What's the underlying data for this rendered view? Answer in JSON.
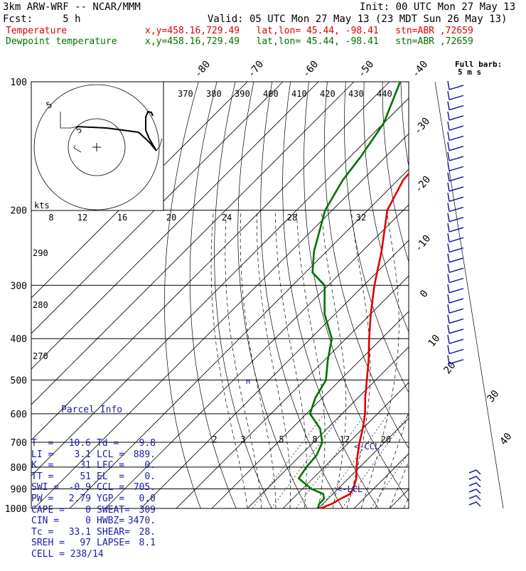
{
  "header": {
    "model": "3km ARW-WRF -- NCAR/MMM",
    "init": "Init: 00 UTC Mon 27 May 13",
    "fcst": "Fcst:     5 h",
    "valid": "Valid: 05 UTC Mon 27 May 13 (23 MDT Sun 26 May 13)",
    "temperature": {
      "name": "Temperature",
      "info": "x,y=458.16,729.49   lat,lon= 45.44, -98.41   stn=ABR ,72659",
      "color": "#e00000"
    },
    "dewpoint": {
      "name": "Dewpoint temperature",
      "info": "x,y=458.16,729.49   lat,lon= 45.44, -98.41   stn=ABR ,72659",
      "color": "#007000"
    }
  },
  "chart_data": {
    "type": "line",
    "title": "",
    "yscale": "log",
    "ylim": [
      1000,
      100
    ],
    "pressure_labels": [
      "100",
      "200",
      "300",
      "400",
      "500",
      "600",
      "700",
      "800",
      "900",
      "1000"
    ],
    "isotherm_labels": [
      "-80",
      "-70",
      "-60",
      "-50",
      "-40",
      "-30",
      "-20",
      "-10",
      "0",
      "10",
      "20",
      "30",
      "40"
    ],
    "theta_labels": [
      "370",
      "380",
      "390",
      "400",
      "410",
      "420",
      "430",
      "440"
    ],
    "mixing_ratio_labels": [
      "2",
      "3",
      "5",
      "8",
      "12",
      "20"
    ],
    "dry_adiabat_labels": [
      "290",
      "280",
      "270"
    ],
    "series": [
      {
        "name": "Temperature",
        "color": "#e00000",
        "points": [
          [
            1000,
            10.6
          ],
          [
            975,
            12.5
          ],
          [
            950,
            13.5
          ],
          [
            925,
            14.8
          ],
          [
            900,
            14.3
          ],
          [
            850,
            12.2
          ],
          [
            800,
            9.1
          ],
          [
            750,
            6.0
          ],
          [
            700,
            3.0
          ],
          [
            650,
            0.0
          ],
          [
            600,
            -3.5
          ],
          [
            550,
            -8.0
          ],
          [
            500,
            -12.5
          ],
          [
            450,
            -17.5
          ],
          [
            400,
            -23.5
          ],
          [
            350,
            -30.0
          ],
          [
            300,
            -37.0
          ],
          [
            250,
            -44.5
          ],
          [
            200,
            -54.5
          ],
          [
            170,
            -58.5
          ],
          [
            150,
            -59.5
          ],
          [
            125,
            -61.0
          ],
          [
            100,
            -66.0
          ]
        ]
      },
      {
        "name": "Dewpoint temperature",
        "color": "#007000",
        "points": [
          [
            1000,
            9.8
          ],
          [
            975,
            8.9
          ],
          [
            950,
            8.9
          ],
          [
            925,
            7.3
          ],
          [
            900,
            2.5
          ],
          [
            850,
            -4.0
          ],
          [
            800,
            -5.0
          ],
          [
            750,
            -5.5
          ],
          [
            700,
            -7.5
          ],
          [
            650,
            -12.0
          ],
          [
            600,
            -19.0
          ],
          [
            550,
            -22.0
          ],
          [
            500,
            -24.0
          ],
          [
            450,
            -29.0
          ],
          [
            400,
            -34.0
          ],
          [
            350,
            -43.0
          ],
          [
            300,
            -51.0
          ],
          [
            280,
            -58.0
          ],
          [
            250,
            -63.5
          ],
          [
            200,
            -72.0
          ],
          [
            170,
            -75.5
          ],
          [
            150,
            -77.0
          ],
          [
            125,
            -80.0
          ],
          [
            100,
            -87.0
          ]
        ]
      }
    ],
    "annotations": {
      "ccl": "<-CCL",
      "lcl": "<-LCL",
      "lfc": "H"
    },
    "hodograph": {
      "units": "kts",
      "ring_labels": [
        "5"
      ],
      "speed_labels": [
        "8",
        "12",
        "16",
        "20",
        "24",
        "28",
        "32"
      ]
    },
    "wind_barbs": {
      "legend": "Full barb:",
      "legend_value": "5 m s",
      "count": 28
    }
  },
  "parcel": {
    "title": "Parcel Info",
    "rows": [
      [
        "T  =",
        "10.6",
        "Td =",
        "9.8"
      ],
      [
        "LI =",
        "3.1",
        "LCL =",
        "889."
      ],
      [
        "K  =",
        "31",
        "LFC =",
        "0."
      ],
      [
        "TT =",
        "51",
        "EL  =",
        "0."
      ],
      [
        "SWI =",
        "-0.9",
        "CCL =",
        "705."
      ],
      [
        "PW =",
        "2.79",
        "YGP =",
        "0.0"
      ],
      [
        "CAPE =",
        "0",
        "SWEAT=",
        "309"
      ],
      [
        "CIN =",
        "0",
        "HWBZ=",
        "3470."
      ],
      [
        "Tc =",
        "33.1",
        "SHEAR=",
        "28."
      ],
      [
        "SREH =",
        "97",
        "LAPSE=",
        "8.1"
      ]
    ],
    "cell_label": "CELL =",
    "cell_value": "238/14"
  }
}
